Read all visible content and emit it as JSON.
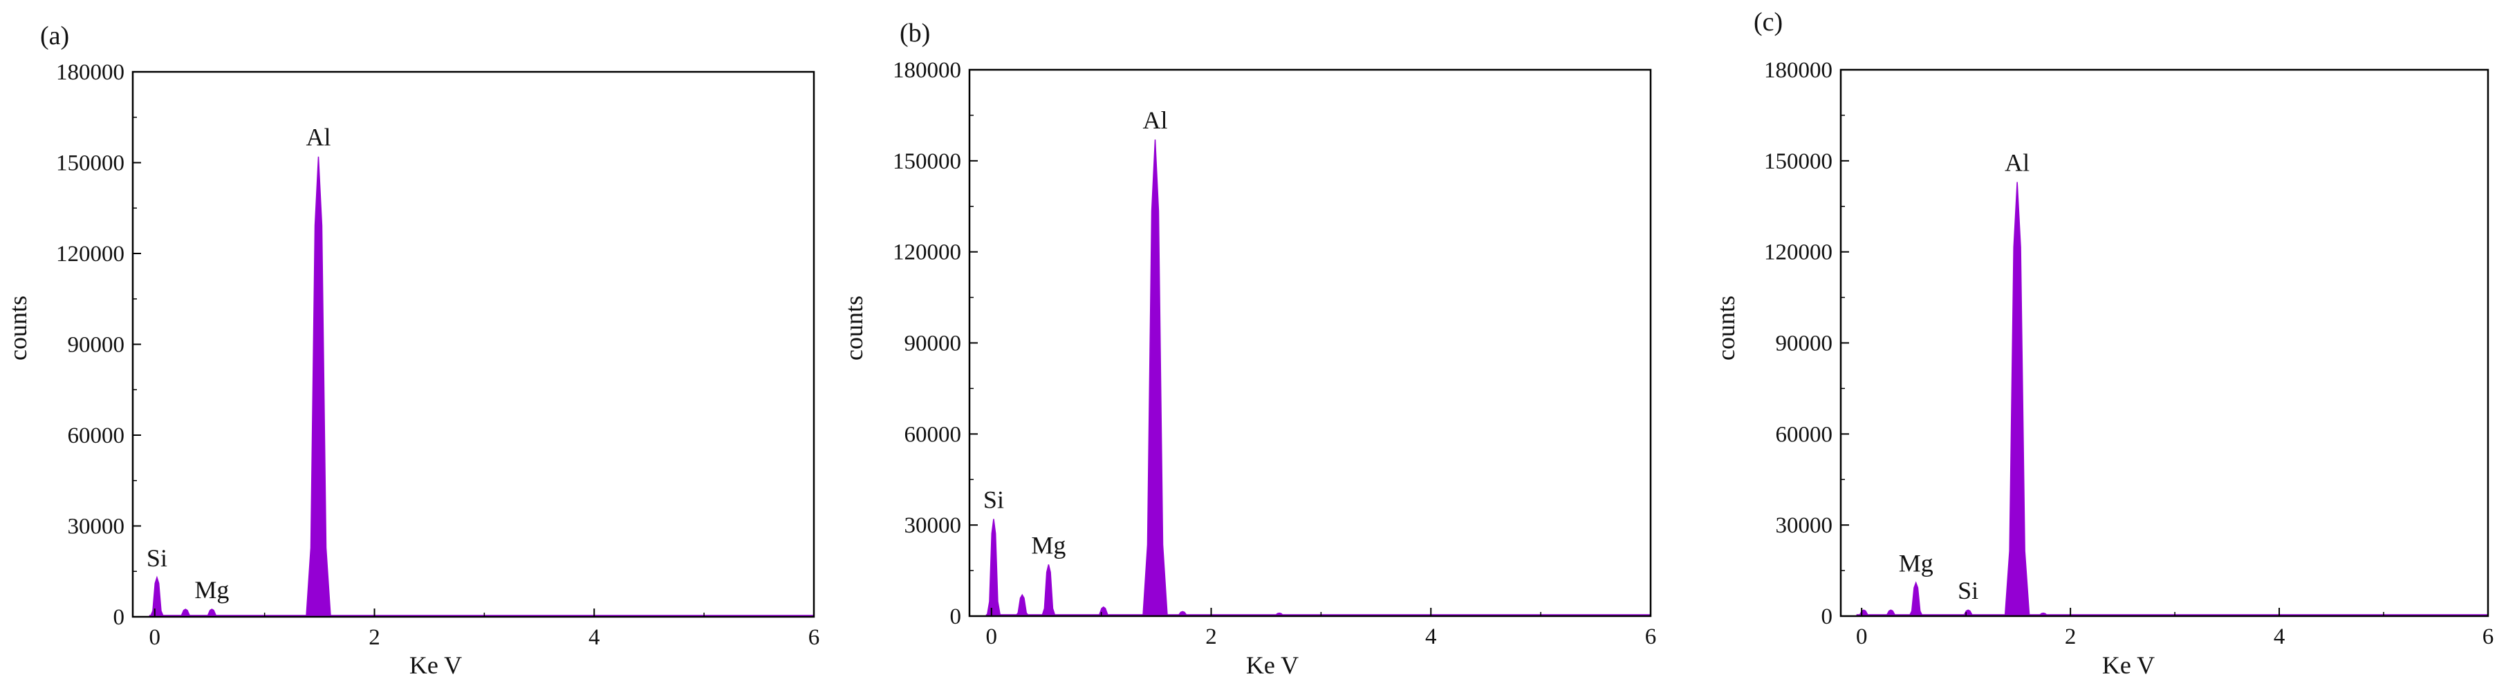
{
  "chart_data": [
    {
      "type": "area",
      "panel_label": "(a)",
      "xlabel": "Ke V",
      "ylabel": "counts",
      "xlim": [
        -0.2,
        6
      ],
      "ylim": [
        0,
        180000
      ],
      "xticks": [
        0,
        2,
        4,
        6
      ],
      "yticks": [
        0,
        30000,
        60000,
        90000,
        120000,
        150000,
        180000
      ],
      "grid": false,
      "color": "#9400D3",
      "peaks": [
        {
          "label": "Si",
          "x": 0.02,
          "y": 13000,
          "show_label": true
        },
        {
          "label": "",
          "x": 0.28,
          "y": 2500,
          "show_label": false
        },
        {
          "label": "Mg",
          "x": 0.52,
          "y": 2500,
          "show_label": true
        },
        {
          "label": "Al",
          "x": 1.49,
          "y": 152000,
          "show_label": true
        }
      ]
    },
    {
      "type": "area",
      "panel_label": "(b)",
      "xlabel": "Ke V",
      "ylabel": "counts",
      "xlim": [
        -0.2,
        6
      ],
      "ylim": [
        0,
        180000
      ],
      "xticks": [
        0,
        2,
        4,
        6
      ],
      "yticks": [
        0,
        30000,
        60000,
        90000,
        120000,
        150000,
        180000
      ],
      "grid": false,
      "color": "#9400D3",
      "peaks": [
        {
          "label": "Si",
          "x": 0.02,
          "y": 32000,
          "show_label": true
        },
        {
          "label": "",
          "x": 0.28,
          "y": 7000,
          "show_label": false
        },
        {
          "label": "Mg",
          "x": 0.52,
          "y": 17000,
          "show_label": true
        },
        {
          "label": "",
          "x": 1.02,
          "y": 3000,
          "show_label": false
        },
        {
          "label": "Al",
          "x": 1.49,
          "y": 157000,
          "show_label": true
        },
        {
          "label": "",
          "x": 1.74,
          "y": 1500,
          "show_label": false
        },
        {
          "label": "",
          "x": 2.62,
          "y": 1000,
          "show_label": false
        }
      ]
    },
    {
      "type": "area",
      "panel_label": "(c)",
      "xlabel": "Ke V",
      "ylabel": "counts",
      "xlim": [
        -0.2,
        6
      ],
      "ylim": [
        0,
        180000
      ],
      "xticks": [
        0,
        2,
        4,
        6
      ],
      "yticks": [
        0,
        30000,
        60000,
        90000,
        120000,
        150000,
        180000
      ],
      "grid": false,
      "color": "#9400D3",
      "peaks": [
        {
          "label": "",
          "x": 0.02,
          "y": 2000,
          "show_label": false
        },
        {
          "label": "",
          "x": 0.28,
          "y": 2000,
          "show_label": false
        },
        {
          "label": "Mg",
          "x": 0.52,
          "y": 11000,
          "show_label": true
        },
        {
          "label": "Si",
          "x": 1.02,
          "y": 2000,
          "show_label": true
        },
        {
          "label": "Al",
          "x": 1.49,
          "y": 143000,
          "show_label": true
        },
        {
          "label": "",
          "x": 1.74,
          "y": 1000,
          "show_label": false
        }
      ]
    }
  ]
}
